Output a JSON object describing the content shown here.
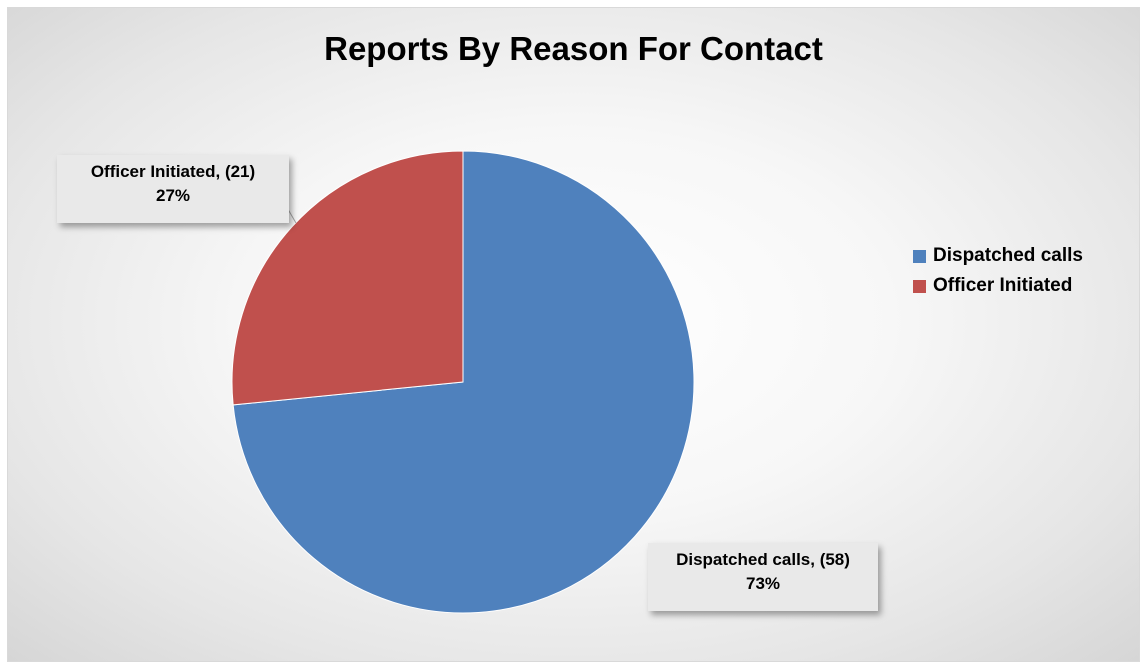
{
  "chart_data": {
    "type": "pie",
    "title": "Reports By Reason For Contact",
    "slices": [
      {
        "name": "Dispatched calls",
        "value": 58,
        "percent": "73%",
        "color": "#4f81bd"
      },
      {
        "name": "Officer Initiated",
        "value": 21,
        "percent": "27%",
        "color": "#c0504d"
      }
    ],
    "data_labels": [
      {
        "line1": "Dispatched calls, (58)",
        "line2": "73%"
      },
      {
        "line1": "Officer Initiated, (21)",
        "line2": "27%"
      }
    ],
    "legend": {
      "position": "right",
      "items": [
        "Dispatched calls",
        "Officer Initiated"
      ]
    }
  }
}
